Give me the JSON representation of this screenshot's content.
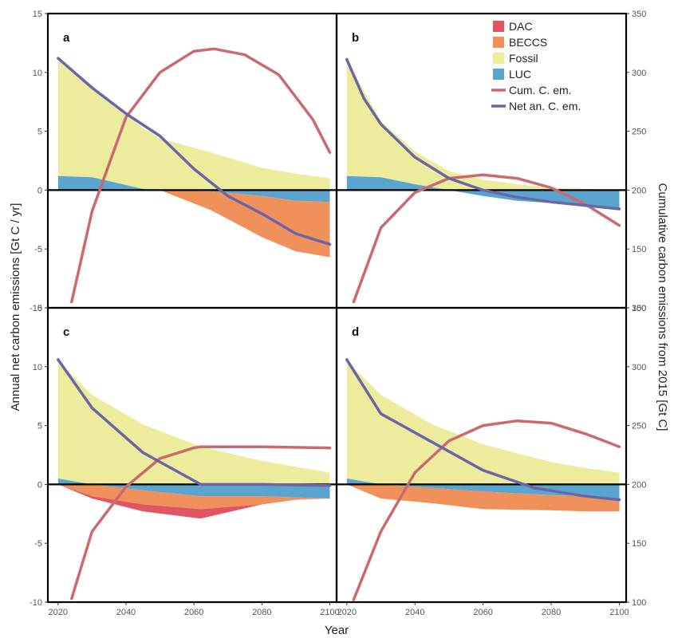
{
  "chart_data": {
    "type": "area",
    "panels": [
      {
        "label": "a",
        "x": [
          2020,
          2030,
          2045,
          2050,
          2065,
          2080,
          2090,
          2100
        ],
        "luc": [
          1.2,
          1.1,
          0.1,
          0.0,
          -0.1,
          -0.5,
          -0.9,
          -1.0
        ],
        "fossil": [
          9.8,
          7.6,
          5.2,
          4.4,
          3.2,
          1.9,
          1.4,
          1.0
        ],
        "beccs": [
          0.0,
          0.0,
          0.0,
          0.0,
          -1.6,
          -3.5,
          -4.3,
          -4.7
        ],
        "dac": [
          0,
          0,
          0,
          0,
          0,
          0,
          0,
          0
        ],
        "net_x": [
          2020,
          2030,
          2040,
          2050,
          2060,
          2070,
          2080,
          2090,
          2100
        ],
        "net": [
          11.2,
          8.7,
          6.5,
          4.6,
          1.8,
          -0.5,
          -2.0,
          -3.7,
          -4.6
        ],
        "cum_x": [
          2024,
          2030,
          2040,
          2050,
          2060,
          2066,
          2075,
          2085,
          2095,
          2100
        ],
        "cum": [
          105,
          182,
          262,
          300,
          318,
          320,
          315,
          298,
          260,
          232
        ]
      },
      {
        "label": "b",
        "x": [
          2020,
          2030,
          2040,
          2050,
          2060,
          2070,
          2080,
          2090,
          2100
        ],
        "luc": [
          1.2,
          1.1,
          0.5,
          0.0,
          -0.5,
          -0.9,
          -1.1,
          -1.3,
          -1.5
        ],
        "fossil": [
          9.8,
          4.8,
          2.8,
          1.6,
          0.9,
          0.5,
          0.2,
          0.1,
          0.0
        ],
        "beccs": [
          0,
          0,
          0,
          0,
          0,
          0,
          0,
          0,
          0
        ],
        "dac": [
          0,
          0,
          0,
          0,
          0,
          0,
          0,
          0,
          0
        ],
        "net_x": [
          2020,
          2025,
          2030,
          2040,
          2050,
          2060,
          2070,
          2080,
          2090,
          2100
        ],
        "net": [
          11.1,
          7.8,
          5.6,
          2.8,
          1.0,
          0.0,
          -0.6,
          -1.0,
          -1.3,
          -1.6
        ],
        "cum_x": [
          2022,
          2030,
          2040,
          2050,
          2060,
          2070,
          2080,
          2090,
          2100
        ],
        "cum": [
          105,
          168,
          198,
          210,
          213,
          210,
          202,
          188,
          170
        ]
      },
      {
        "label": "c",
        "x": [
          2020,
          2030,
          2045,
          2062,
          2080,
          2090,
          2100
        ],
        "luc": [
          0.5,
          0.0,
          -0.5,
          -1.0,
          -1.0,
          -1.1,
          -1.2
        ],
        "fossil": [
          10.0,
          7.6,
          5.1,
          3.2,
          2.0,
          1.5,
          1.0
        ],
        "beccs": [
          0.0,
          -1.0,
          -1.2,
          -1.1,
          -0.7,
          -0.2,
          0.0
        ],
        "dac": [
          0.0,
          -0.2,
          -0.6,
          -0.8,
          0.0,
          0.0,
          0.0
        ],
        "net_x": [
          2020,
          2030,
          2045,
          2062,
          2080,
          2100
        ],
        "net": [
          10.6,
          6.5,
          2.7,
          0.0,
          0.0,
          -0.1
        ],
        "cum_x": [
          2024,
          2030,
          2040,
          2050,
          2060,
          2062,
          2080,
          2100
        ],
        "cum": [
          103,
          160,
          198,
          222,
          231,
          232,
          232,
          231
        ]
      },
      {
        "label": "d",
        "x": [
          2020,
          2030,
          2045,
          2060,
          2080,
          2090,
          2100
        ],
        "luc": [
          0.5,
          0.0,
          -0.3,
          -0.6,
          -0.9,
          -1.0,
          -1.2
        ],
        "fossil": [
          10.0,
          7.6,
          5.1,
          3.4,
          1.9,
          1.4,
          1.0
        ],
        "beccs": [
          0.0,
          -1.2,
          -1.3,
          -1.5,
          -1.3,
          -1.3,
          -1.1
        ],
        "dac": [
          0,
          0,
          0,
          0,
          0,
          0,
          0
        ],
        "net_x": [
          2020,
          2030,
          2045,
          2060,
          2075,
          2090,
          2100
        ],
        "net": [
          10.6,
          6.0,
          3.6,
          1.2,
          -0.3,
          -1.0,
          -1.3
        ],
        "cum_x": [
          2022,
          2030,
          2040,
          2050,
          2060,
          2070,
          2080,
          2090,
          2100
        ],
        "cum": [
          102,
          160,
          210,
          237,
          250,
          254,
          252,
          243,
          232
        ]
      }
    ],
    "xlim": [
      2017,
      2102
    ],
    "ylim": [
      -10,
      15
    ],
    "y2lim": [
      100,
      350
    ],
    "x_ticks": [
      2020,
      2040,
      2060,
      2080,
      2100
    ],
    "y_ticks": [
      -10,
      -5,
      0,
      5,
      10,
      15
    ],
    "y2_ticks": [
      100,
      150,
      200,
      250,
      300,
      350
    ],
    "xlabel": "Year",
    "ylabel": "Annual net carbon emissions [Gt C / yr]",
    "y2label": "Cumulative carbon emissions from 2015 [Gt C]",
    "legend": {
      "placement": "top-right",
      "items": [
        {
          "key": "dac",
          "label": "DAC",
          "kind": "patch",
          "color": "#e05464"
        },
        {
          "key": "beccs",
          "label": "BECCS",
          "kind": "patch",
          "color": "#f0905a"
        },
        {
          "key": "fossil",
          "label": "Fossil",
          "kind": "patch",
          "color": "#ecec9c"
        },
        {
          "key": "luc",
          "label": "LUC",
          "kind": "patch",
          "color": "#5aa5cf"
        },
        {
          "key": "cum",
          "label": "Cum. C. em.",
          "kind": "line",
          "color": "#c96b6e"
        },
        {
          "key": "net",
          "label": "Net an. C. em.",
          "kind": "line",
          "color": "#6b66a8"
        }
      ]
    }
  }
}
